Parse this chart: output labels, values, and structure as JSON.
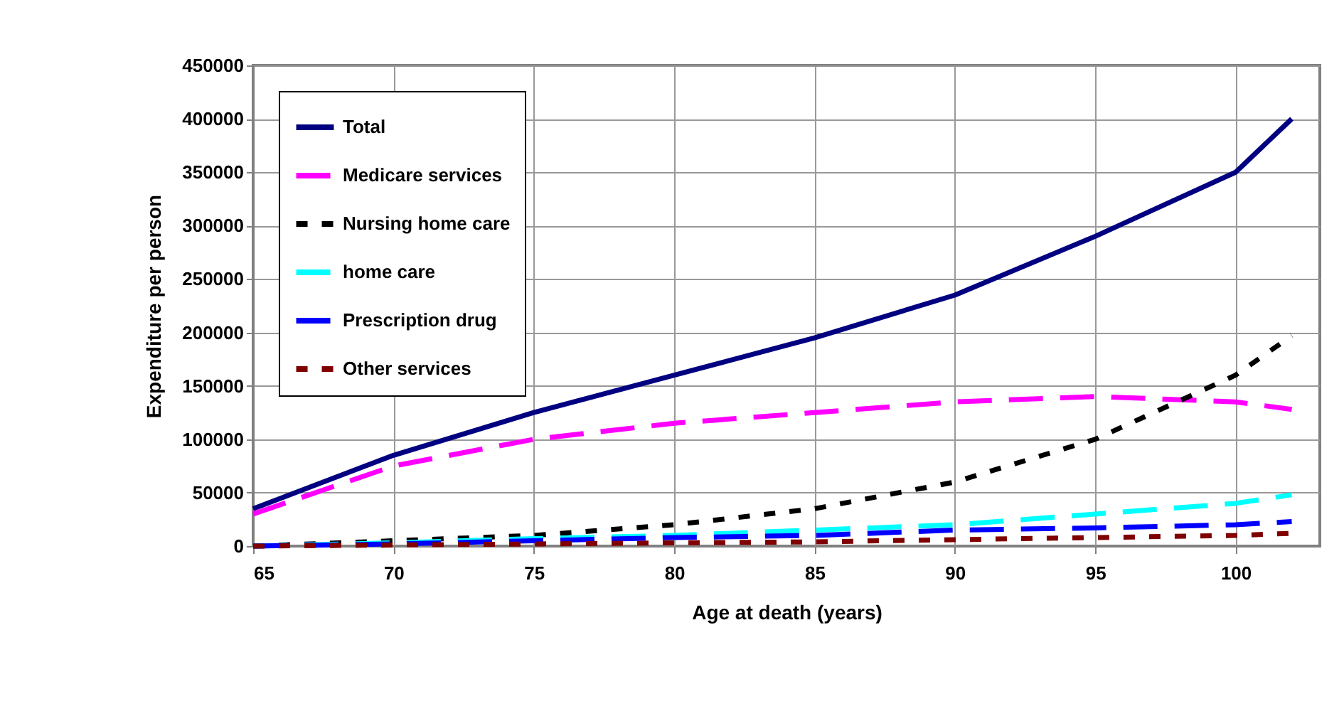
{
  "chart_data": {
    "type": "line",
    "xlabel": "Age at death (years)",
    "ylabel": "Expenditure per person",
    "xlim": [
      65,
      103
    ],
    "xticks": [
      65,
      70,
      75,
      80,
      85,
      90,
      95,
      100
    ],
    "ylim": [
      0,
      450000
    ],
    "yticks": [
      0,
      50000,
      100000,
      150000,
      200000,
      250000,
      300000,
      350000,
      400000,
      450000
    ],
    "grid": true,
    "legend": "top left",
    "x": [
      65,
      70,
      75,
      80,
      85,
      90,
      95,
      100,
      102
    ],
    "series": [
      {
        "name": "Total",
        "color": "#000080",
        "line_style": "solid",
        "values": [
          35000,
          85000,
          125000,
          160000,
          195000,
          235000,
          290000,
          350000,
          400000
        ]
      },
      {
        "name": "Medicare services",
        "color": "#ff00ff",
        "line_style": "dashed",
        "values": [
          30000,
          75000,
          100000,
          115000,
          125000,
          135000,
          140000,
          135000,
          128000
        ]
      },
      {
        "name": "Nursing home care",
        "color": "#000000",
        "line_style": "dotted",
        "values": [
          0,
          5000,
          10000,
          20000,
          35000,
          60000,
          100000,
          160000,
          197000
        ]
      },
      {
        "name": "home care",
        "color": "#00ffff",
        "line_style": "dashed",
        "values": [
          0,
          3000,
          7000,
          10000,
          15000,
          20000,
          30000,
          40000,
          48000
        ]
      },
      {
        "name": "Prescription drug",
        "color": "#0000ff",
        "line_style": "dashed",
        "values": [
          0,
          2000,
          5000,
          8000,
          10000,
          15000,
          17000,
          20000,
          23000
        ]
      },
      {
        "name": "Other services",
        "color": "#800000",
        "line_style": "dotted",
        "values": [
          0,
          1000,
          2000,
          3000,
          4000,
          6000,
          8000,
          10000,
          12000
        ]
      }
    ]
  }
}
